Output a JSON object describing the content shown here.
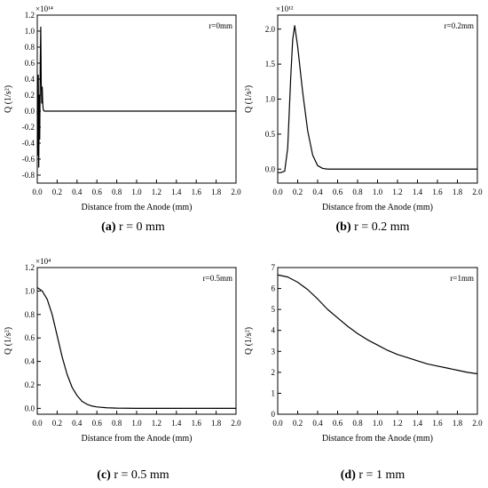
{
  "chart_data": [
    {
      "type": "line",
      "caption_letter": "(a)",
      "caption_text": " r = 0 mm",
      "corner_label": "r=0mm",
      "xlabel": "Distance from the Anode (mm)",
      "ylabel": "Q (1/s²)",
      "multiplier": "×10¹⁴",
      "xlim": [
        0,
        2.0
      ],
      "ylim": [
        -0.9,
        1.2
      ],
      "xticks": [
        "0.0",
        "0.2",
        "0.4",
        "0.6",
        "0.8",
        "1.0",
        "1.2",
        "1.4",
        "1.6",
        "1.8",
        "2.0"
      ],
      "yticks": [
        "-0.8",
        "-0.6",
        "-0.4",
        "-0.2",
        "0.0",
        "0.2",
        "0.4",
        "0.6",
        "0.8",
        "1.0",
        "1.2"
      ],
      "x": [
        0.0,
        0.005,
        0.01,
        0.015,
        0.02,
        0.025,
        0.03,
        0.035,
        0.04,
        0.045,
        0.05,
        0.055,
        0.06,
        0.07,
        0.08,
        0.1,
        0.3,
        0.6,
        1.0,
        1.5,
        2.0
      ],
      "y": [
        0.0,
        -0.55,
        0.45,
        -0.7,
        0.2,
        -0.35,
        0.55,
        1.05,
        0.35,
        0.1,
        0.3,
        0.1,
        0.02,
        0.0,
        0.0,
        0.0,
        0.0,
        0.0,
        0.0,
        0.0,
        0.0
      ]
    },
    {
      "type": "line",
      "caption_letter": "(b)",
      "caption_text": " r = 0.2 mm",
      "corner_label": "r=0.2mm",
      "xlabel": "Distance from the Anode (mm)",
      "ylabel": "Q (1/s²)",
      "multiplier": "×10¹²",
      "xlim": [
        0,
        2.0
      ],
      "ylim": [
        -0.2,
        2.2
      ],
      "xticks": [
        "0.0",
        "0.2",
        "0.4",
        "0.6",
        "0.8",
        "1.0",
        "1.2",
        "1.4",
        "1.6",
        "1.8",
        "2.0"
      ],
      "yticks": [
        "0.0",
        "0.5",
        "1.0",
        "1.5",
        "2.0"
      ],
      "x": [
        0.0,
        0.03,
        0.07,
        0.1,
        0.13,
        0.15,
        0.17,
        0.2,
        0.25,
        0.3,
        0.35,
        0.4,
        0.45,
        0.5,
        0.6,
        1.0,
        1.5,
        2.0
      ],
      "y": [
        -0.05,
        -0.05,
        -0.03,
        0.3,
        1.3,
        1.85,
        2.05,
        1.75,
        1.1,
        0.55,
        0.2,
        0.05,
        0.01,
        0.0,
        0.0,
        0.0,
        0.0,
        0.0
      ]
    },
    {
      "type": "line",
      "caption_letter": "(c)",
      "caption_text": " r = 0.5 mm",
      "corner_label": "r=0.5mm",
      "xlabel": "Distance from the Anode (mm)",
      "ylabel": "Q (1/s²)",
      "multiplier": "×10⁴",
      "xlim": [
        0,
        2.0
      ],
      "ylim": [
        -0.05,
        1.2
      ],
      "xticks": [
        "0.0",
        "0.2",
        "0.4",
        "0.6",
        "0.8",
        "1.0",
        "1.2",
        "1.4",
        "1.6",
        "1.8",
        "2.0"
      ],
      "yticks": [
        "0.0",
        "0.2",
        "0.4",
        "0.6",
        "0.8",
        "1.0",
        "1.2"
      ],
      "x": [
        0.0,
        0.05,
        0.1,
        0.15,
        0.2,
        0.25,
        0.3,
        0.35,
        0.4,
        0.45,
        0.5,
        0.55,
        0.6,
        0.7,
        0.8,
        0.9,
        1.0,
        1.2,
        1.5,
        2.0
      ],
      "y": [
        1.03,
        1.0,
        0.93,
        0.8,
        0.62,
        0.44,
        0.29,
        0.18,
        0.11,
        0.06,
        0.035,
        0.02,
        0.012,
        0.005,
        0.002,
        0.001,
        0.0,
        0.0,
        0.0,
        0.0
      ]
    },
    {
      "type": "line",
      "caption_letter": "(d)",
      "caption_text": " r = 1 mm",
      "corner_label": "r=1mm",
      "xlabel": "Distance from the Anode (mm)",
      "ylabel": "Q (1/s²)",
      "multiplier": "",
      "xlim": [
        0,
        2.0
      ],
      "ylim": [
        0,
        7
      ],
      "xticks": [
        "0.0",
        "0.2",
        "0.4",
        "0.6",
        "0.8",
        "1.0",
        "1.2",
        "1.4",
        "1.6",
        "1.8",
        "2.0"
      ],
      "yticks": [
        "0",
        "1",
        "2",
        "3",
        "4",
        "5",
        "6",
        "7"
      ],
      "x": [
        0.0,
        0.1,
        0.2,
        0.3,
        0.4,
        0.5,
        0.6,
        0.7,
        0.8,
        0.9,
        1.0,
        1.1,
        1.2,
        1.3,
        1.4,
        1.5,
        1.6,
        1.7,
        1.8,
        1.9,
        2.0
      ],
      "y": [
        6.65,
        6.55,
        6.3,
        5.95,
        5.5,
        5.0,
        4.6,
        4.2,
        3.85,
        3.55,
        3.3,
        3.05,
        2.85,
        2.7,
        2.55,
        2.4,
        2.3,
        2.2,
        2.1,
        2.0,
        1.93
      ]
    }
  ]
}
